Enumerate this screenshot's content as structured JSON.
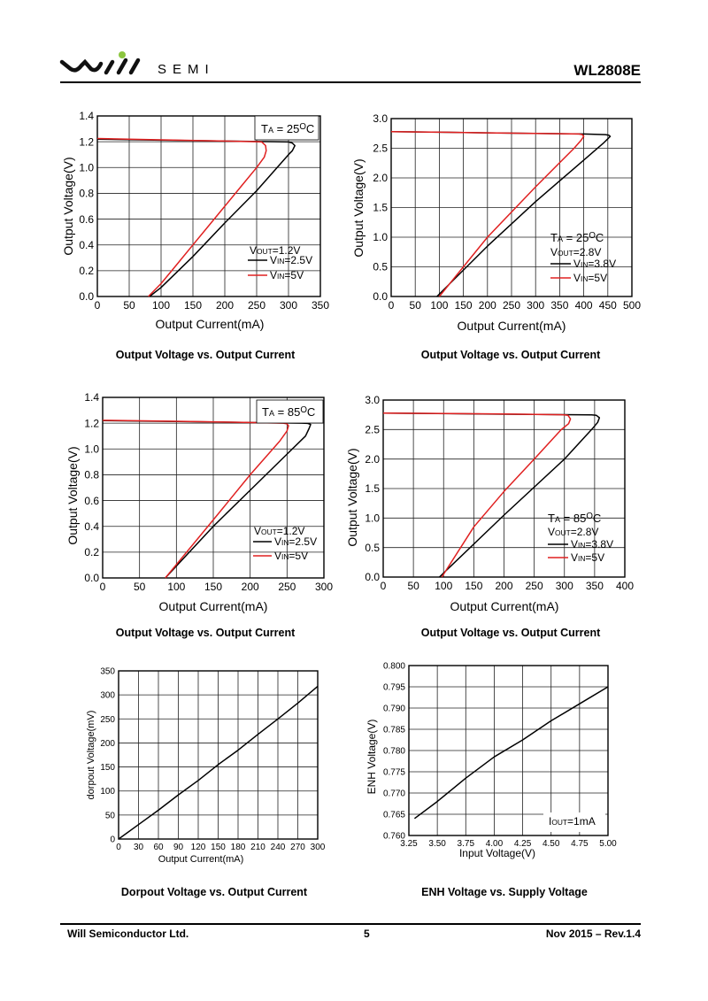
{
  "header": {
    "logo_text": "will",
    "brand": "SEMI",
    "part_number": "WL2808E"
  },
  "footer": {
    "company": "Will Semiconductor Ltd.",
    "page": "5",
    "revision": "Nov 2015 – Rev.1.4"
  },
  "colors": {
    "black_series": "#000000",
    "red_series": "#e02020",
    "logo_dot": "#8cc63f"
  },
  "chart_data": [
    {
      "type": "line",
      "title": "Output Voltage vs. Output Current",
      "xlabel": "Output Current(mA)",
      "ylabel": "Output Voltage(V)",
      "xlim": [
        0,
        350
      ],
      "ylim": [
        0,
        1.4
      ],
      "grid": true,
      "xticks": [
        "0",
        "50",
        "100",
        "150",
        "200",
        "250",
        "300",
        "350"
      ],
      "yticks": [
        "0.0",
        "0.2",
        "0.4",
        "0.6",
        "0.8",
        "1.0",
        "1.2",
        "1.4"
      ],
      "condition": {
        "p": "T",
        "sub": "A",
        "rest": " = 25",
        "sup": "O",
        "end": "C"
      },
      "vout": {
        "p": "V",
        "sub": "OUT",
        "rest": "=1.2V"
      },
      "series": [
        {
          "name": "VIN=2.5V",
          "label": {
            "p": "V",
            "sub": "IN",
            "rest": "=2.5V"
          },
          "color": "#000000",
          "x": [
            0,
            100,
            200,
            280,
            300,
            306,
            310,
            306,
            300,
            275,
            250,
            200,
            150,
            100,
            82
          ],
          "y": [
            1.22,
            1.212,
            1.205,
            1.2,
            1.198,
            1.19,
            1.17,
            1.13,
            1.1,
            0.96,
            0.82,
            0.57,
            0.31,
            0.07,
            0
          ]
        },
        {
          "name": "VIN=5V",
          "label": {
            "p": "V",
            "sub": "IN",
            "rest": "=5V"
          },
          "color": "#e02020",
          "x": [
            0,
            100,
            200,
            250,
            258,
            264,
            265,
            262,
            250,
            225,
            200,
            175,
            150,
            125,
            100,
            80
          ],
          "y": [
            1.225,
            1.215,
            1.205,
            1.2,
            1.198,
            1.17,
            1.13,
            1.08,
            1.0,
            0.85,
            0.7,
            0.55,
            0.4,
            0.25,
            0.1,
            0
          ]
        }
      ]
    },
    {
      "type": "line",
      "title": "Output Voltage vs. Output Current",
      "xlabel": "Output Current(mA)",
      "ylabel": "Output Voltage(V)",
      "xlim": [
        0,
        500
      ],
      "ylim": [
        0,
        3.0
      ],
      "grid": true,
      "xticks": [
        "0",
        "50",
        "100",
        "150",
        "200",
        "250",
        "300",
        "350",
        "400",
        "450",
        "500"
      ],
      "yticks": [
        "0.0",
        "0.5",
        "1.0",
        "1.5",
        "2.0",
        "2.5",
        "3.0"
      ],
      "condition": {
        "p": "T",
        "sub": "A",
        "rest": " = 25",
        "sup": "O",
        "end": "C"
      },
      "vout": {
        "p": "V",
        "sub": "OUT",
        "rest": "=2.8V"
      },
      "series": [
        {
          "name": "VIN=3.8V",
          "label": {
            "p": "V",
            "sub": "IN",
            "rest": "=3.8V"
          },
          "color": "#000000",
          "x": [
            0,
            200,
            400,
            445,
            452,
            455,
            450,
            440,
            400,
            300,
            200,
            95
          ],
          "y": [
            2.78,
            2.76,
            2.74,
            2.73,
            2.72,
            2.7,
            2.66,
            2.58,
            2.3,
            1.6,
            0.85,
            0
          ]
        },
        {
          "name": "VIN=5V",
          "label": {
            "p": "V",
            "sub": "IN",
            "rest": "=5V"
          },
          "color": "#e02020",
          "x": [
            0,
            200,
            390,
            397,
            400,
            395,
            380,
            300,
            200,
            100
          ],
          "y": [
            2.78,
            2.76,
            2.74,
            2.73,
            2.7,
            2.64,
            2.5,
            1.85,
            1.0,
            0
          ]
        }
      ]
    },
    {
      "type": "line",
      "title": "Output Voltage vs. Output Current",
      "xlabel": "Output Current(mA)",
      "ylabel": "Output Voltage(V)",
      "xlim": [
        0,
        300
      ],
      "ylim": [
        0,
        1.4
      ],
      "grid": true,
      "xticks": [
        "0",
        "50",
        "100",
        "150",
        "200",
        "250",
        "300"
      ],
      "yticks": [
        "0.0",
        "0.2",
        "0.4",
        "0.6",
        "0.8",
        "1.0",
        "1.2",
        "1.4"
      ],
      "condition": {
        "p": "T",
        "sub": "A",
        "rest": " = 85",
        "sup": "O",
        "end": "C"
      },
      "vout": {
        "p": "V",
        "sub": "OUT",
        "rest": "=1.2V"
      },
      "series": [
        {
          "name": "VIN=2.5V",
          "label": {
            "p": "V",
            "sub": "IN",
            "rest": "=2.5V"
          },
          "color": "#000000",
          "x": [
            0,
            100,
            200,
            270,
            278,
            282,
            280,
            275,
            250,
            200,
            150,
            85
          ],
          "y": [
            1.22,
            1.213,
            1.205,
            1.2,
            1.198,
            1.19,
            1.16,
            1.1,
            0.96,
            0.68,
            0.4,
            0
          ]
        },
        {
          "name": "VIN=5V",
          "label": {
            "p": "V",
            "sub": "IN",
            "rest": "=5V"
          },
          "color": "#e02020",
          "x": [
            0,
            100,
            200,
            245,
            250,
            252,
            250,
            240,
            200,
            150,
            85
          ],
          "y": [
            1.222,
            1.215,
            1.205,
            1.2,
            1.195,
            1.18,
            1.14,
            1.06,
            0.8,
            0.45,
            0
          ]
        }
      ]
    },
    {
      "type": "line",
      "title": "Output Voltage vs. Output Current",
      "xlabel": "Output Current(mA)",
      "ylabel": "Output Voltage(V)",
      "xlim": [
        0,
        400
      ],
      "ylim": [
        0,
        3.0
      ],
      "grid": true,
      "xticks": [
        "0",
        "50",
        "100",
        "150",
        "200",
        "250",
        "300",
        "350",
        "400"
      ],
      "yticks": [
        "0.0",
        "0.5",
        "1.0",
        "1.5",
        "2.0",
        "2.5",
        "3.0"
      ],
      "condition": {
        "p": "T",
        "sub": "A",
        "rest": " = 85",
        "sup": "O",
        "end": "C"
      },
      "vout": {
        "p": "V",
        "sub": "OUT",
        "rest": "=2.8V"
      },
      "series": [
        {
          "name": "VIN=3.8V",
          "label": {
            "p": "V",
            "sub": "IN",
            "rest": "=3.8V"
          },
          "color": "#000000",
          "x": [
            0,
            200,
            345,
            353,
            358,
            355,
            345,
            300,
            200,
            93
          ],
          "y": [
            2.78,
            2.76,
            2.75,
            2.74,
            2.7,
            2.62,
            2.5,
            2.0,
            1.05,
            0
          ]
        },
        {
          "name": "VIN=5V",
          "label": {
            "p": "V",
            "sub": "IN",
            "rest": "=5V"
          },
          "color": "#e02020",
          "x": [
            0,
            200,
            300,
            306,
            310,
            307,
            295,
            250,
            200,
            150,
            97
          ],
          "y": [
            2.78,
            2.765,
            2.75,
            2.74,
            2.68,
            2.6,
            2.5,
            2.0,
            1.45,
            0.85,
            0
          ]
        }
      ]
    },
    {
      "type": "line",
      "title": "Dorpout Voltage vs. Output Current",
      "xlabel": "Output Current(mA)",
      "ylabel": "dorpout Voltage(mV)",
      "xlim": [
        0,
        300
      ],
      "ylim": [
        0,
        350
      ],
      "grid": true,
      "xticks": [
        "0",
        "30",
        "60",
        "90",
        "120",
        "150",
        "180",
        "210",
        "240",
        "270",
        "300"
      ],
      "yticks": [
        "0",
        "50",
        "100",
        "150",
        "200",
        "250",
        "300",
        "350"
      ],
      "series": [
        {
          "name": "dropout",
          "color": "#000000",
          "x": [
            0,
            30,
            60,
            90,
            120,
            150,
            180,
            210,
            240,
            270,
            300
          ],
          "y": [
            0,
            30,
            60,
            92,
            122,
            155,
            185,
            218,
            250,
            283,
            318
          ]
        }
      ]
    },
    {
      "type": "line",
      "title": "ENH Voltage vs. Supply Voltage",
      "xlabel": "Input Voltage(V)",
      "ylabel": "ENH Voltage(V)",
      "xlim": [
        3.25,
        5.0
      ],
      "ylim": [
        0.76,
        0.8
      ],
      "grid": true,
      "xticks": [
        "3.25",
        "3.50",
        "3.75",
        "4.00",
        "4.25",
        "4.50",
        "4.75",
        "5.00"
      ],
      "yticks": [
        "0.760",
        "0.765",
        "0.770",
        "0.775",
        "0.780",
        "0.785",
        "0.790",
        "0.795",
        "0.800"
      ],
      "condition_simple": {
        "p": "I",
        "sub": "OUT",
        "rest": "=1mA"
      },
      "series": [
        {
          "name": "ENH",
          "color": "#000000",
          "x": [
            3.3,
            3.5,
            3.75,
            4.0,
            4.25,
            4.5,
            4.75,
            5.0
          ],
          "y": [
            0.764,
            0.768,
            0.7735,
            0.7785,
            0.7825,
            0.787,
            0.791,
            0.795
          ]
        }
      ]
    }
  ]
}
